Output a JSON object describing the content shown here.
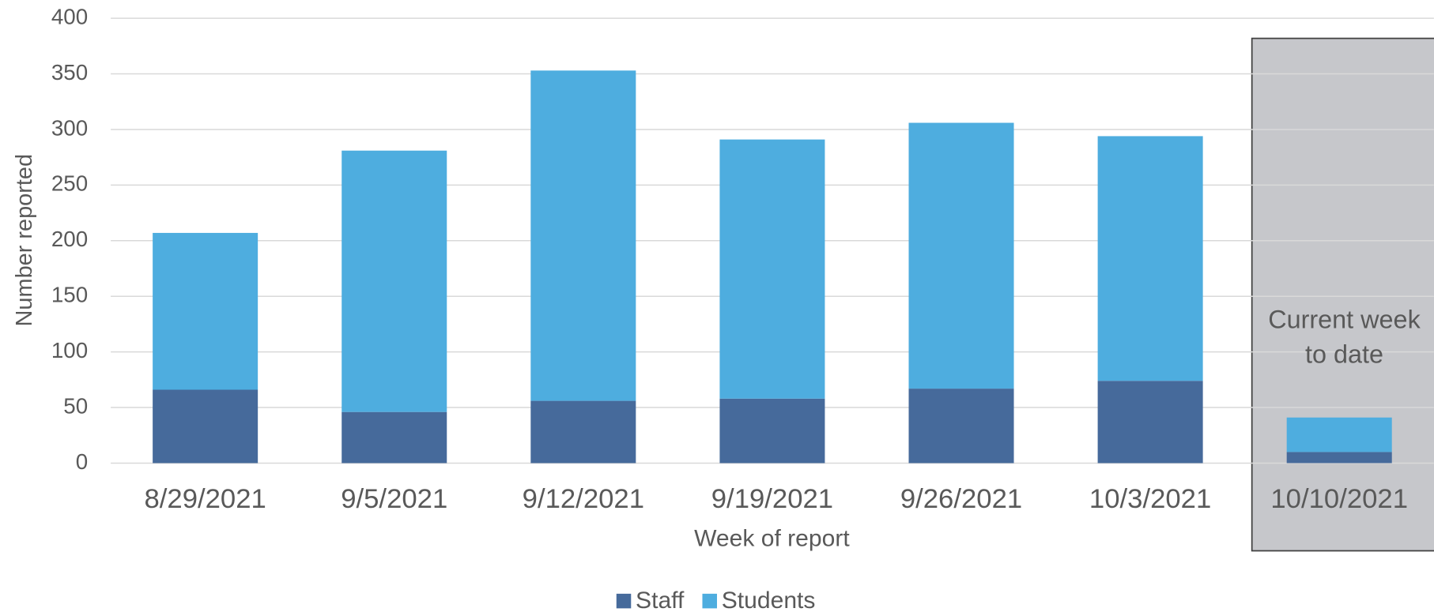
{
  "chart_data": {
    "type": "stacked-bar",
    "x_label": "Week of report",
    "y_label": "Number reported",
    "categories": [
      "8/29/2021",
      "9/5/2021",
      "9/12/2021",
      "9/19/2021",
      "9/26/2021",
      "10/3/2021",
      "10/10/2021"
    ],
    "series": [
      {
        "name": "Staff",
        "color": "#466a9b",
        "values": [
          66,
          46,
          56,
          58,
          67,
          74,
          10
        ]
      },
      {
        "name": "Students",
        "color": "#4eaddf",
        "values": [
          141,
          235,
          297,
          233,
          239,
          220,
          31
        ]
      }
    ],
    "ylim": [
      0,
      400
    ],
    "yticks": [
      0,
      50,
      100,
      150,
      200,
      250,
      300,
      350,
      400
    ],
    "grid": true,
    "legend": "bottom",
    "annotation": {
      "lines": [
        "Current week",
        "to date"
      ]
    }
  }
}
